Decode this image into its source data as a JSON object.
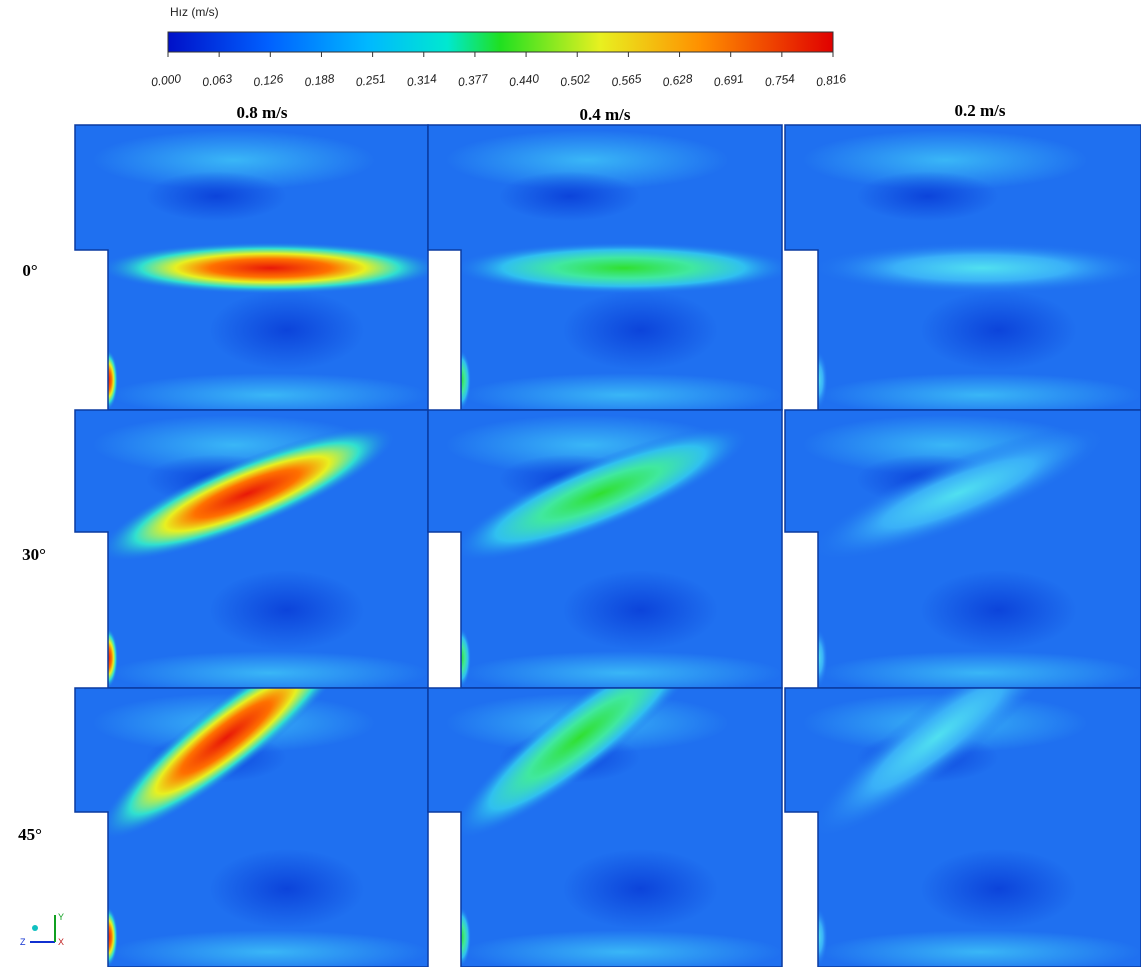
{
  "colorbar": {
    "title": "Hız (m/s)",
    "ticks": [
      "0.000",
      "0.063",
      "0.126",
      "0.188",
      "0.251",
      "0.314",
      "0.377",
      "0.440",
      "0.502",
      "0.565",
      "0.628",
      "0.691",
      "0.754",
      "0.816"
    ]
  },
  "columns": [
    "0.8 m/s",
    "0.4 m/s",
    "0.2 m/s"
  ],
  "rows": [
    "0°",
    "30°",
    "45°"
  ],
  "axes_triad": {
    "y": "Y",
    "z": "Z",
    "x": "X"
  }
}
